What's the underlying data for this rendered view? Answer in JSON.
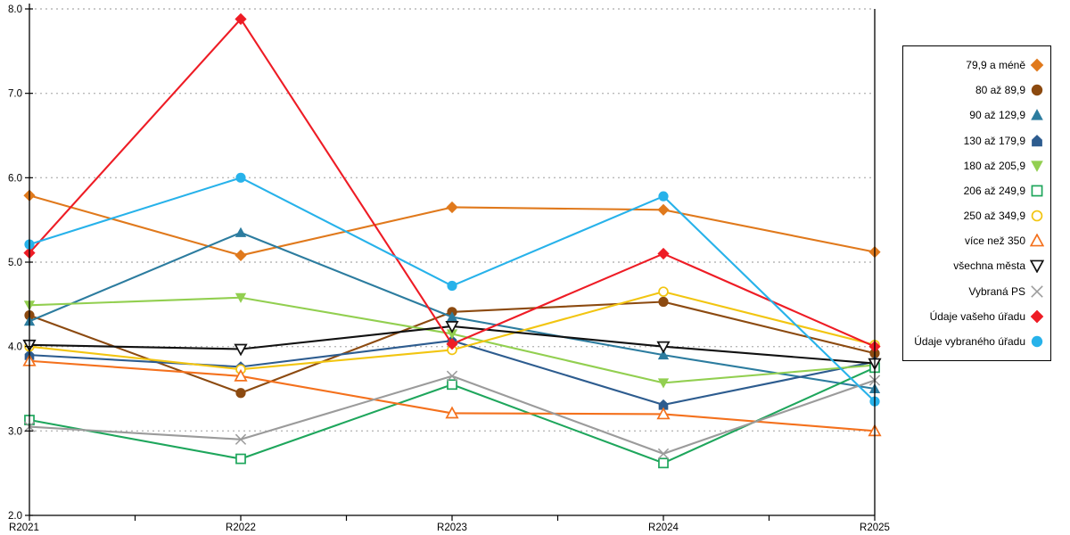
{
  "colors": {
    "axis": "#000000",
    "grid": "#b9b9b9",
    "background": "#ffffff",
    "legend_border": "#000000"
  },
  "chart_data": {
    "type": "line",
    "title": "",
    "xlabel": "",
    "ylabel": "",
    "categories": [
      "R2021",
      "R2022",
      "R2023",
      "R2024",
      "R2025"
    ],
    "ylim": [
      2.0,
      8.0
    ],
    "yticks": [
      "2.0",
      "3.0",
      "4.0",
      "5.0",
      "6.0",
      "7.0",
      "8.0"
    ],
    "grid": "horizontal-dotted",
    "legend_position": "right-box",
    "series": [
      {
        "name": "79,9 a méně",
        "marker": "diamond",
        "fill": "filled",
        "color": "#e0791c",
        "values": [
          5.79,
          5.08,
          5.65,
          5.62,
          5.12
        ]
      },
      {
        "name": "80 až 89,9",
        "marker": "circle",
        "fill": "filled",
        "color": "#8c4a10",
        "values": [
          4.37,
          3.45,
          4.41,
          4.53,
          3.92
        ]
      },
      {
        "name": "90 až 129,9",
        "marker": "triangle-up",
        "fill": "filled",
        "color": "#2c7c9f",
        "values": [
          4.3,
          5.35,
          4.35,
          3.9,
          3.5
        ]
      },
      {
        "name": "130 až 179,9",
        "marker": "pentagon",
        "fill": "filled",
        "color": "#2d5c8f",
        "values": [
          3.9,
          3.76,
          4.07,
          3.31,
          3.82
        ]
      },
      {
        "name": "180 až 205,9",
        "marker": "triangle-down",
        "fill": "filled",
        "color": "#92cf50",
        "values": [
          4.49,
          4.58,
          4.15,
          3.57,
          3.78
        ]
      },
      {
        "name": "206 až 249,9",
        "marker": "square",
        "fill": "open",
        "color": "#1ea65c",
        "values": [
          3.13,
          2.67,
          3.55,
          2.62,
          3.75
        ]
      },
      {
        "name": "250 až 349,9",
        "marker": "circle",
        "fill": "open",
        "color": "#f2c511",
        "values": [
          4.0,
          3.73,
          3.96,
          4.65,
          4.02
        ]
      },
      {
        "name": "více než 350",
        "marker": "triangle-up",
        "fill": "open",
        "color": "#f4711d",
        "values": [
          3.83,
          3.65,
          3.21,
          3.2,
          3.0
        ]
      },
      {
        "name": "všechna města",
        "marker": "triangle-down",
        "fill": "open",
        "color": "#111111",
        "values": [
          4.02,
          3.97,
          4.24,
          4.0,
          3.8
        ]
      },
      {
        "name": "Vybraná PS",
        "marker": "x",
        "fill": "open",
        "color": "#9b9b9b",
        "values": [
          3.05,
          2.9,
          3.65,
          2.73,
          3.6
        ]
      },
      {
        "name": "Údaje vašeho úřadu",
        "marker": "diamond",
        "fill": "filled",
        "color": "#ee1c25",
        "values": [
          5.11,
          7.88,
          4.03,
          5.1,
          4.0
        ]
      },
      {
        "name": "Údaje vybraného úřadu",
        "marker": "circle",
        "fill": "filled",
        "color": "#27b2ea",
        "values": [
          5.21,
          6.0,
          4.72,
          5.78,
          3.35
        ]
      }
    ]
  }
}
